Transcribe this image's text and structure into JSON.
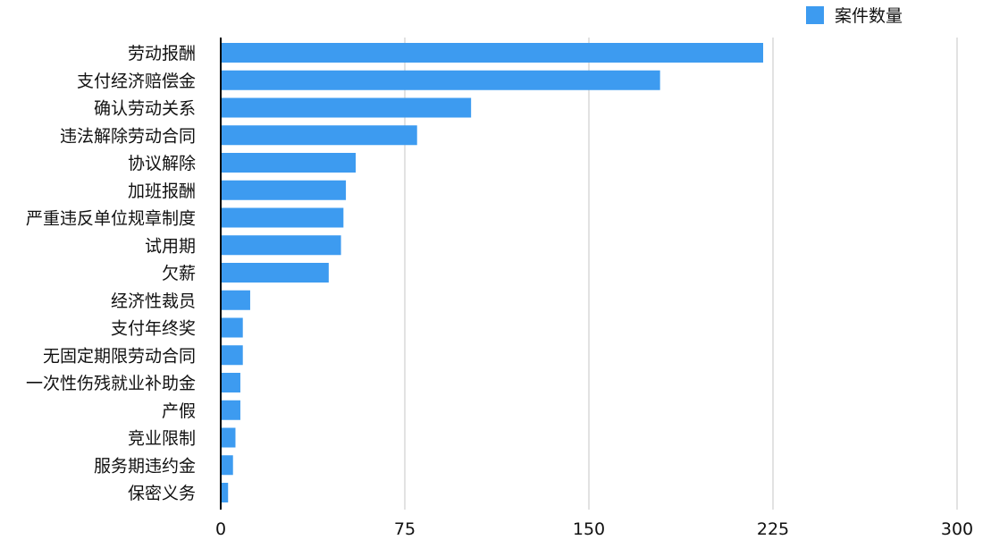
{
  "chart_data": {
    "type": "bar",
    "orientation": "horizontal",
    "title": "",
    "xlabel": "",
    "ylabel": "",
    "xlim": [
      0,
      300
    ],
    "ticks": [
      0,
      75,
      150,
      225,
      300
    ],
    "grid": true,
    "legend_position": "top-right",
    "bar_color": "#3d9bf0",
    "grid_color": "#d9d9d9",
    "axis_color": "#000000",
    "categories": [
      "劳动报酬",
      "支付经济赔偿金",
      "确认劳动关系",
      "违法解除劳动合同",
      "协议解除",
      "加班报酬",
      "严重违反单位规章制度",
      "试用期",
      "欠薪",
      "经济性裁员",
      "支付年终奖",
      "无固定期限劳动合同",
      "一次性伤残就业补助金",
      "产假",
      "竞业限制",
      "服务期违约金",
      "保密义务"
    ],
    "series": [
      {
        "name": "案件数量",
        "values": [
          221,
          179,
          102,
          80,
          55,
          51,
          50,
          49,
          44,
          12,
          9,
          9,
          8,
          8,
          6,
          5,
          3
        ]
      }
    ]
  }
}
